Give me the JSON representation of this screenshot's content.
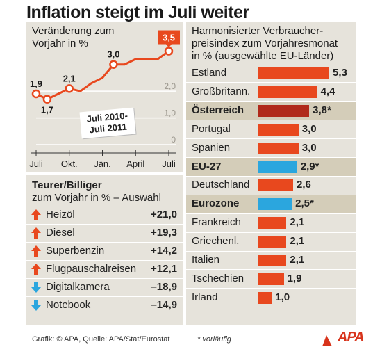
{
  "title": "Inflation steigt im Juli weiter",
  "footer": "Grafik: © APA, Quelle: APA/Stat/Eurostat",
  "note": "* vorläufig",
  "logo": "APA",
  "colors": {
    "bar": "#e8481e",
    "bar_austria": "#b02a1a",
    "bar_eu": "#2ba6de",
    "arrow_up": "#e8481e",
    "arrow_down": "#2ba6de",
    "panel": "#e6e3db",
    "highlight": "#d4cdb9"
  },
  "chart_data": [
    {
      "type": "line",
      "subtitle_lines": [
        "Veränderung zum",
        "Vorjahr in %"
      ],
      "period_lines": [
        "Juli 2010-",
        "Juli 2011"
      ],
      "x": [
        "2010-07",
        "2010-08",
        "2010-09",
        "2010-10",
        "2010-11",
        "2010-12",
        "2011-01",
        "2011-02",
        "2011-03",
        "2011-04",
        "2011-05",
        "2011-06",
        "2011-07"
      ],
      "xticks": [
        "Juli",
        "Okt.",
        "Jän.",
        "April",
        "Juli"
      ],
      "xtick_index": [
        0,
        3,
        6,
        9,
        12
      ],
      "y": [
        1.9,
        1.7,
        1.9,
        2.1,
        2.0,
        2.3,
        2.5,
        3.0,
        3.0,
        3.2,
        3.2,
        3.2,
        3.5
      ],
      "ylim": [
        0,
        3.8
      ],
      "yticks": [
        "0",
        "1,0",
        "2,0"
      ],
      "ytick_values": [
        0,
        1,
        2
      ],
      "labels": [
        {
          "i": 0,
          "text": "1,9"
        },
        {
          "i": 1,
          "text": "1,7"
        },
        {
          "i": 3,
          "text": "2,1"
        },
        {
          "i": 7,
          "text": "3,0"
        },
        {
          "i": 12,
          "text": "3,5"
        }
      ]
    },
    {
      "type": "table",
      "title": "Teurer/Billiger",
      "subtitle": "zum Vorjahr in % – Auswahl",
      "rows": [
        {
          "name": "Heizöl",
          "value": "+21,0",
          "dir": "up"
        },
        {
          "name": "Diesel",
          "value": "+19,3",
          "dir": "up"
        },
        {
          "name": "Superbenzin",
          "value": "+14,2",
          "dir": "up"
        },
        {
          "name": "Flugpauschalreisen",
          "value": "+12,1",
          "dir": "up"
        },
        {
          "name": "Digitalkamera",
          "value": "–18,9",
          "dir": "down"
        },
        {
          "name": "Notebook",
          "value": "–14,9",
          "dir": "down"
        }
      ]
    },
    {
      "type": "bar",
      "subtitle_lines": [
        "Harmonisierter Verbraucher-",
        "preisindex zum Vorjahresmonat",
        "in % (ausgewählte EU-Länder)"
      ],
      "categories": [
        "Estland",
        "Großbritann.",
        "Österreich",
        "Portugal",
        "Spanien",
        "EU-27",
        "Deutschland",
        "Eurozone",
        "Frankreich",
        "Griechenl.",
        "Italien",
        "Tschechien",
        "Irland"
      ],
      "values": [
        5.3,
        4.4,
        3.8,
        3.0,
        3.0,
        2.9,
        2.6,
        2.5,
        2.1,
        2.1,
        2.1,
        1.9,
        1.0
      ],
      "value_labels": [
        "5,3",
        "4,4",
        "3,8*",
        "3,0",
        "3,0",
        "2,9*",
        "2,6",
        "2,5*",
        "2,1",
        "2,1",
        "2,1",
        "1,9",
        "1,0"
      ],
      "xlim": [
        0,
        5.3
      ]
    }
  ]
}
